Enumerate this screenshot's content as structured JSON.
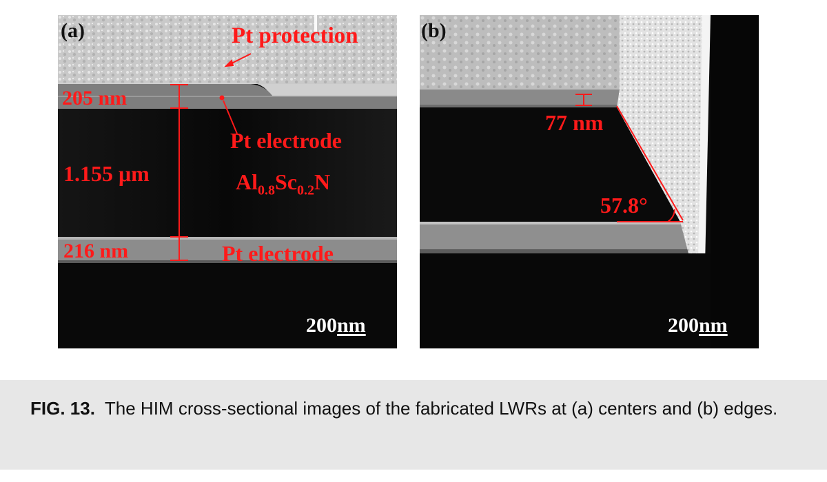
{
  "figure": {
    "panel_a": {
      "letter": "(a)",
      "labels": {
        "pt_protection": "Pt protection",
        "top_thickness": "205 nm",
        "pt_electrode_top": "Pt electrode",
        "film_thickness": "1.155 μm",
        "material": {
          "base": "Al",
          "sub1": "0.8",
          "mid": "Sc",
          "sub2": "0.2",
          "end": "N"
        },
        "bottom_thickness": "216 nm",
        "pt_electrode_bottom": "Pt electrode"
      },
      "scale_bar": {
        "number": "200",
        "unit": "nm"
      }
    },
    "panel_b": {
      "letter": "(b)",
      "labels": {
        "edge_thickness": "77 nm",
        "angle": "57.8°"
      },
      "scale_bar": {
        "number": "200",
        "unit": "nm"
      }
    }
  },
  "caption": {
    "label": "FIG. 13.",
    "text": "The HIM cross-sectional images of the fabricated LWRs at (a) centers and (b) edges."
  },
  "colors": {
    "annotation": "#ff1a1a",
    "caption_background": "#e7e7e7"
  }
}
